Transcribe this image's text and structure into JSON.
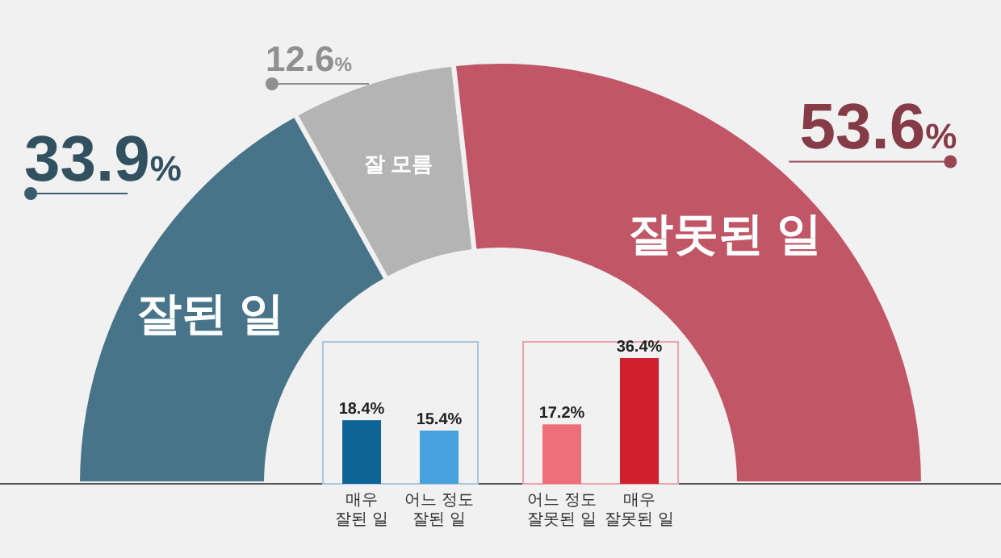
{
  "chart_data": [
    {
      "type": "donut",
      "categories": [
        "잘된 일",
        "잘 모름",
        "잘못된 일"
      ],
      "values": [
        33.9,
        12.6,
        53.6
      ],
      "colors": [
        "#477489",
        "#b4b4b4",
        "#c05666"
      ],
      "value_labels": [
        "33.9%",
        "12.6%",
        "53.6%"
      ]
    },
    {
      "type": "bar",
      "categories": [
        "매우\n잘된 일",
        "어느 정도\n잘된 일"
      ],
      "values": [
        18.4,
        15.4
      ],
      "colors": [
        "#0f6496",
        "#45a2dc"
      ],
      "value_labels": [
        "18.4%",
        "15.4%"
      ]
    },
    {
      "type": "bar",
      "categories": [
        "어느 정도\n잘못된 일",
        "매우\n잘못된 일"
      ],
      "values": [
        17.2,
        36.4
      ],
      "colors": [
        "#ee6f7a",
        "#d11f2f"
      ],
      "value_labels": [
        "17.2%",
        "36.4%"
      ]
    }
  ]
}
